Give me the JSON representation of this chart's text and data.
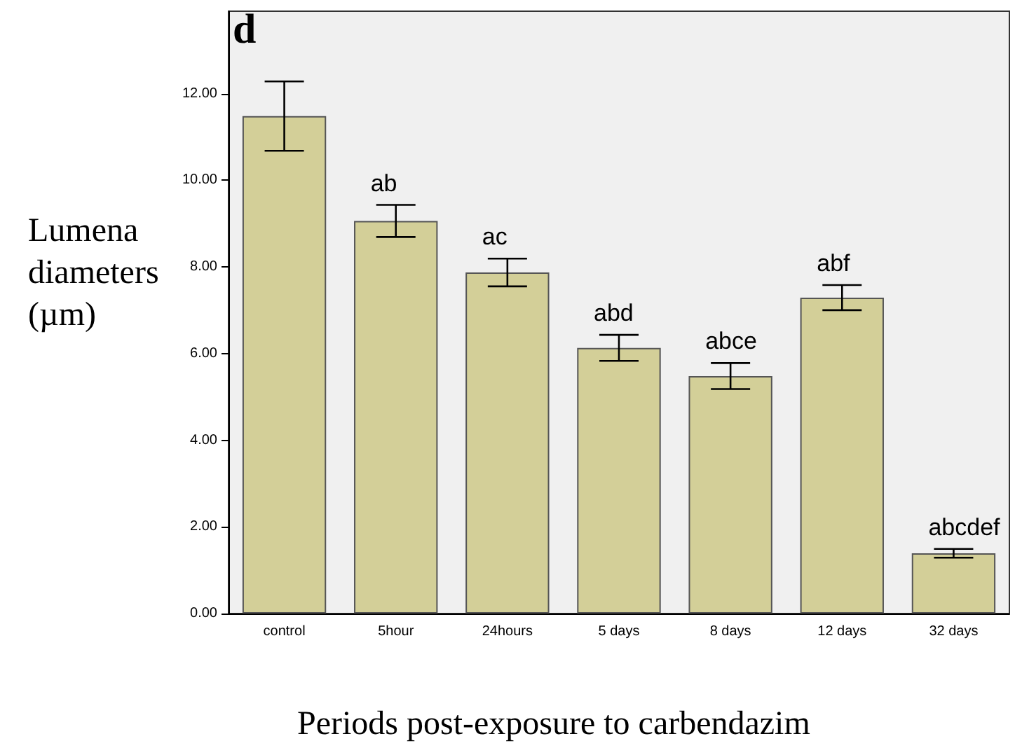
{
  "chart_data": {
    "type": "bar",
    "title": "d",
    "xlabel": "Periods post-exposure to carbendazim",
    "ylabel": "Lumena\ndiameters\n(µm)",
    "categories": [
      "control",
      "5hour",
      "24hours",
      "5 days",
      "8 days",
      "12 days",
      "32 days"
    ],
    "values": [
      11.48,
      9.06,
      7.87,
      6.13,
      5.48,
      7.29,
      1.39
    ],
    "errors": [
      0.8,
      0.37,
      0.32,
      0.3,
      0.3,
      0.29,
      0.1
    ],
    "color": "#d3cf98",
    "ylim": [
      0,
      13.9
    ],
    "yticks": [
      {
        "value": 0,
        "label": "0.00"
      },
      {
        "value": 2,
        "label": "2.00"
      },
      {
        "value": 4,
        "label": "4.00"
      },
      {
        "value": 6,
        "label": "6.00"
      },
      {
        "value": 8,
        "label": "8.00"
      },
      {
        "value": 10,
        "label": "10.00"
      },
      {
        "value": 12,
        "label": "12.00"
      }
    ],
    "grid": false,
    "annotations": [
      {
        "text": "ab",
        "x": "5hour",
        "y": 9.43
      },
      {
        "text": "ac",
        "x": "24hours",
        "y": 8.19
      },
      {
        "text": "abd",
        "x": "5 days",
        "y": 6.43
      },
      {
        "text": "abce",
        "x": "8 days",
        "y": 5.78
      },
      {
        "text": "abf",
        "x": "12 days",
        "y": 7.58
      },
      {
        "text": "abcdef",
        "x": "32 days",
        "y": 1.49
      }
    ]
  }
}
